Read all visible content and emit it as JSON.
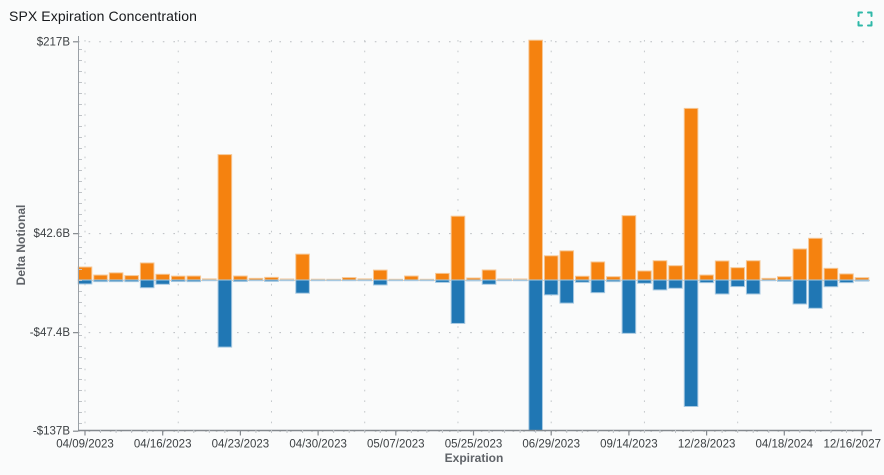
{
  "header": {
    "title": "SPX Expiration Concentration",
    "accent_color": "#2fb8a8"
  },
  "chart_data": {
    "type": "bar",
    "title": "SPX Expiration Concentration",
    "xlabel": "Expiration",
    "ylabel": "Delta Notional",
    "ylim": [
      -137,
      217
    ],
    "legend_position": "none",
    "grid": "dotted",
    "value_units": "$ billions (B)",
    "colors": {
      "positive": "#f5820f",
      "negative": "#2077b4"
    },
    "num_bars": 51,
    "y_ticks": [
      {
        "label": "$217B",
        "value": 217
      },
      {
        "label": "$42.6B",
        "value": 42.6
      },
      {
        "label": "-$47.4B",
        "value": -47.4
      },
      {
        "label": "-$137B",
        "value": -137
      }
    ],
    "x_ticks": [
      {
        "label": "04/09/2023",
        "bar_index": 0
      },
      {
        "label": "04/16/2023",
        "bar_index": 5
      },
      {
        "label": "04/23/2023",
        "bar_index": 10
      },
      {
        "label": "04/30/2023",
        "bar_index": 15
      },
      {
        "label": "05/07/2023",
        "bar_index": 20
      },
      {
        "label": "05/25/2023",
        "bar_index": 25
      },
      {
        "label": "06/29/2023",
        "bar_index": 30
      },
      {
        "label": "09/14/2023",
        "bar_index": 35
      },
      {
        "label": "12/28/2023",
        "bar_index": 40
      },
      {
        "label": "04/18/2024",
        "bar_index": 45
      },
      {
        "label": "12/16/2027",
        "bar_index": 50
      }
    ],
    "series": [
      {
        "name": "positive_delta_notional",
        "color": "#f5820f",
        "values": [
          11.8,
          4.5,
          6.5,
          4,
          15.5,
          5.2,
          3.5,
          3.6,
          1,
          114,
          3.6,
          1.5,
          2.4,
          0.9,
          23.5,
          0.7,
          0.4,
          2.2,
          1,
          9,
          0.3,
          3.6,
          0.3,
          6,
          58,
          1.8,
          9.1,
          0.9,
          0.9,
          218,
          22,
          26.5,
          3.4,
          16.4,
          3,
          58.5,
          8.2,
          17.5,
          13,
          156,
          4.5,
          17.3,
          11.2,
          17.5,
          1.5,
          3,
          28.2,
          37.9,
          10.6,
          5.5,
          2.1
        ]
      },
      {
        "name": "negative_delta_notional",
        "color": "#2077b4",
        "values": [
          -3.6,
          -1.5,
          -1.5,
          -1.5,
          -7,
          -3.9,
          -1.4,
          -1.5,
          -0.5,
          -61,
          -1.4,
          -0.4,
          -1.3,
          -0.4,
          -12,
          -0.5,
          -0.3,
          -0.6,
          -0.4,
          -4.5,
          -0.2,
          -0.3,
          -0.2,
          -2.2,
          -39.5,
          -0.8,
          -3.9,
          -0.4,
          -0.4,
          -137,
          -13.5,
          -21,
          -2.1,
          -11.5,
          -1.5,
          -48.5,
          -3,
          -9,
          -7.5,
          -115,
          -2.4,
          -12.7,
          -6,
          -12.7,
          -0.4,
          -1.2,
          -21.8,
          -25.7,
          -6.1,
          -2.4,
          -1
        ]
      }
    ]
  }
}
